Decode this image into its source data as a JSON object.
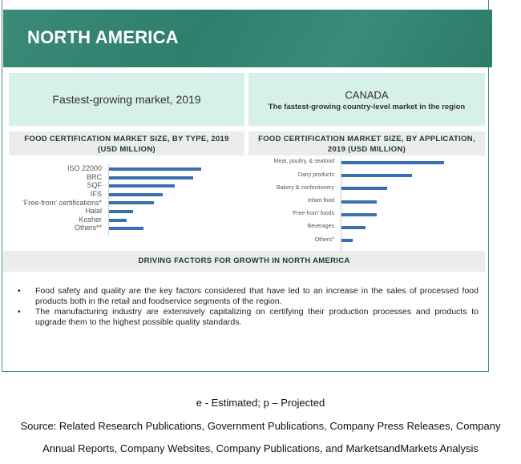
{
  "header": {
    "title": "NORTH AMERICA"
  },
  "highlight": {
    "left": "Fastest-growing market, 2019",
    "country": "CANADA",
    "country_sub": "The fastest-growing country-level  market in the region"
  },
  "chart_data": [
    {
      "type": "bar",
      "orientation": "horizontal",
      "title": "FOOD CERTIFICATION MARKET SIZE, BY TYPE, 2019 (USD MILLION)",
      "title_l1": "FOOD CERTIFICATION MARKET SIZE, BY TYPE, 2019",
      "title_l2": "(USD MILLION)",
      "categories": [
        "ISO 22000",
        "BRC",
        "SQF",
        "IFS",
        "'Free-from' certifications*",
        "Halal",
        "Kosher",
        "Others**"
      ],
      "values": [
        115,
        105,
        82,
        67,
        56,
        30,
        22,
        43
      ],
      "color": "#3a6fb0"
    },
    {
      "type": "bar",
      "orientation": "horizontal",
      "title": "FOOD CERTIFICATION MARKET SIZE, BY APPLICATION, 2019 (USD MILLION)",
      "title_l1": "FOOD CERTIFICATION MARKET SIZE, BY APPLICATION,",
      "title_l2": "2019 (USD MILLION)",
      "categories": [
        "Meat, poultry, & seafood",
        "Dairy products",
        "Bakery & confectionery",
        "Infant food",
        "'Free-from' foods",
        "Beverages",
        "Others^"
      ],
      "values": [
        128,
        88,
        57,
        44,
        44,
        30,
        14
      ],
      "color": "#3a6fb0"
    }
  ],
  "drivers": {
    "title": "DRIVING FACTORS FOR GROWTH IN NORTH AMERICA",
    "bullets": [
      "Food safety and quality are the key factors considered that have led to an increase in the sales of processed food products both in the retail and foodservice segments of the region.",
      "The manufacturing industry are extensively capitalizing on certifying their production processes and products to upgrade them to the highest possible quality standards."
    ]
  },
  "footer": {
    "legend": "e - Estimated; p – Projected",
    "source_l1": "Source: Related Research Publications, Government Publications, Company Press Releases, Company",
    "source_l2": "Annual Reports, Company Websites, Company Publications, and MarketsandMarkets Analysis"
  }
}
